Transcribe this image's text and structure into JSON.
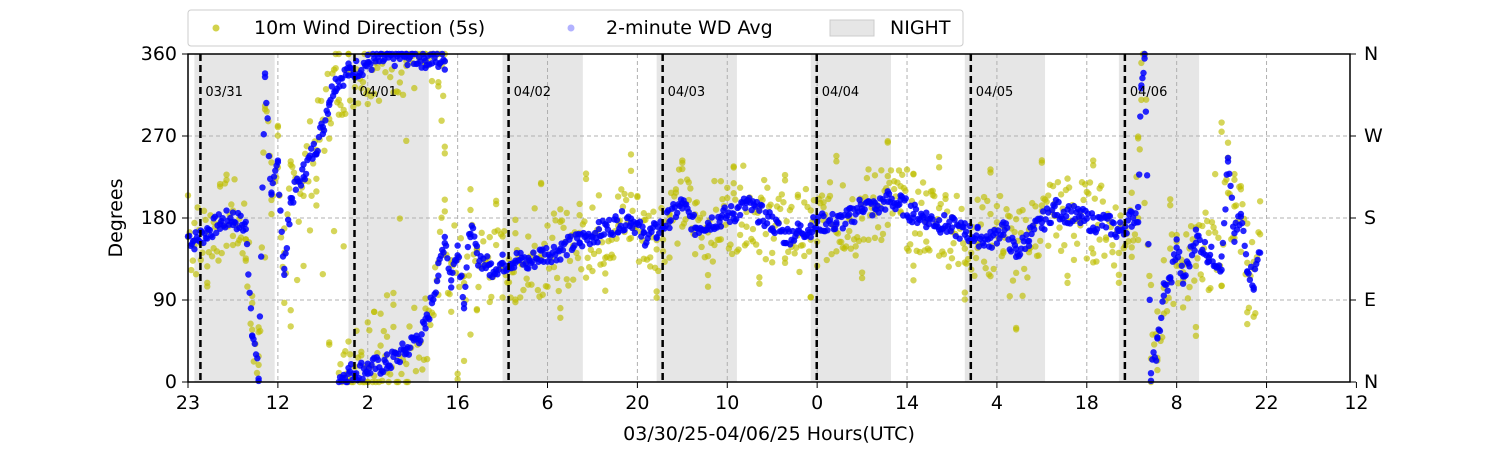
{
  "chart_data": {
    "type": "scatter",
    "title": "",
    "xlabel": "03/30/25-04/06/25  Hours(UTC)",
    "ylabel": "Degrees",
    "x_unit": "hours UTC (time axis)",
    "x_range": [
      "03/30 23:00",
      "04/07 12:00"
    ],
    "x_tick_labels": [
      "23",
      "12",
      "2",
      "16",
      "6",
      "20",
      "10",
      "0",
      "14",
      "4",
      "18",
      "8",
      "22",
      "12"
    ],
    "ylim": [
      0,
      360
    ],
    "y_ticks": [
      0,
      90,
      180,
      270,
      360
    ],
    "y2_tick_labels": [
      "N",
      "E",
      "S",
      "W",
      "N"
    ],
    "grid": true,
    "legend": {
      "placement": "top-left above plot",
      "entries": [
        {
          "label": "10m Wind Direction (5s)",
          "color": "#bfbf00"
        },
        {
          "label": "2-minute WD Avg",
          "color": "#0000ff"
        },
        {
          "label": "NIGHT",
          "color": "#e6e6e6"
        }
      ]
    },
    "day_markers": [
      {
        "label": "03/31",
        "time": "03/31 00:00"
      },
      {
        "label": "04/01",
        "time": "04/01 00:00"
      },
      {
        "label": "04/02",
        "time": "04/02 00:00"
      },
      {
        "label": "04/03",
        "time": "04/03 00:00"
      },
      {
        "label": "04/04",
        "time": "04/04 00:00"
      },
      {
        "label": "04/05",
        "time": "04/05 00:00"
      },
      {
        "label": "04/06",
        "time": "04/06 00:00"
      }
    ],
    "night_periods": [
      {
        "start": "03/31 00:00",
        "end": "03/31 12:30"
      },
      {
        "start": "04/01 00:00",
        "end": "04/01 12:30"
      },
      {
        "start": "04/02 00:00",
        "end": "04/02 12:30"
      },
      {
        "start": "04/03 00:00",
        "end": "04/03 12:30"
      },
      {
        "start": "04/04 00:00",
        "end": "04/04 12:30"
      },
      {
        "start": "04/05 00:00",
        "end": "04/05 12:30"
      },
      {
        "start": "04/06 00:00",
        "end": "04/06 12:30"
      }
    ],
    "series": [
      {
        "name": "2-minute WD Avg",
        "color": "#0000ff",
        "points": [
          [
            "03/30 23:00",
            160
          ],
          [
            "03/31 00:00",
            155
          ],
          [
            "03/31 02:00",
            165
          ],
          [
            "03/31 04:00",
            175
          ],
          [
            "03/31 06:00",
            180
          ],
          [
            "03/31 08:00",
            170
          ],
          [
            "03/31 09:00",
            60
          ],
          [
            "03/31 10:00",
            5
          ],
          [
            "03/31 11:00",
            340
          ],
          [
            "03/31 12:00",
            200
          ],
          [
            "03/31 13:00",
            240
          ],
          [
            "03/31 14:00",
            120
          ],
          [
            "03/31 15:00",
            200
          ],
          [
            "03/31 17:00",
            230
          ],
          [
            "03/31 19:00",
            260
          ],
          [
            "03/31 20:00",
            280
          ],
          [
            "03/31 21:00",
            310
          ],
          [
            "03/31 22:00",
            330
          ],
          [
            "04/01 00:00",
            340
          ],
          [
            "04/01 03:00",
            350
          ],
          [
            "04/01 06:00",
            355
          ],
          [
            "04/01 09:00",
            358
          ],
          [
            "04/01 12:00",
            355
          ],
          [
            "04/01 15:00",
            352
          ],
          [
            "03/31 22:30",
            5
          ],
          [
            "04/01 00:00",
            10
          ],
          [
            "04/01 03:00",
            15
          ],
          [
            "04/01 06:00",
            20
          ],
          [
            "04/01 09:00",
            35
          ],
          [
            "04/01 12:00",
            60
          ],
          [
            "04/01 14:00",
            120
          ],
          [
            "04/01 15:00",
            160
          ],
          [
            "04/01 16:00",
            110
          ],
          [
            "04/01 17:00",
            150
          ],
          [
            "04/01 18:00",
            90
          ],
          [
            "04/01 19:00",
            170
          ],
          [
            "04/01 20:00",
            140
          ],
          [
            "04/01 22:00",
            125
          ],
          [
            "04/02 00:00",
            130
          ],
          [
            "04/02 02:00",
            135
          ],
          [
            "04/02 04:00",
            130
          ],
          [
            "04/02 06:00",
            140
          ],
          [
            "04/02 09:00",
            145
          ],
          [
            "04/02 12:00",
            155
          ],
          [
            "04/02 15:00",
            165
          ],
          [
            "04/02 18:00",
            175
          ],
          [
            "04/02 20:00",
            180
          ],
          [
            "04/02 22:00",
            160
          ],
          [
            "04/03 00:00",
            165
          ],
          [
            "04/03 02:00",
            180
          ],
          [
            "04/03 04:00",
            195
          ],
          [
            "04/03 06:00",
            170
          ],
          [
            "04/03 08:00",
            175
          ],
          [
            "04/03 10:00",
            180
          ],
          [
            "04/03 12:00",
            185
          ],
          [
            "04/03 14:00",
            195
          ],
          [
            "04/03 16:00",
            185
          ],
          [
            "04/03 18:00",
            175
          ],
          [
            "04/03 20:00",
            160
          ],
          [
            "04/03 22:00",
            165
          ],
          [
            "04/04 00:00",
            170
          ],
          [
            "04/04 02:00",
            175
          ],
          [
            "04/04 04:00",
            175
          ],
          [
            "04/04 06:00",
            180
          ],
          [
            "04/04 08:00",
            195
          ],
          [
            "04/04 10:00",
            190
          ],
          [
            "04/04 12:00",
            200
          ],
          [
            "04/04 14:00",
            195
          ],
          [
            "04/04 16:00",
            185
          ],
          [
            "04/04 18:00",
            180
          ],
          [
            "04/04 20:00",
            175
          ],
          [
            "04/04 22:00",
            170
          ],
          [
            "04/05 00:00",
            165
          ],
          [
            "04/05 02:00",
            160
          ],
          [
            "04/05 04:00",
            155
          ],
          [
            "04/05 06:00",
            170
          ],
          [
            "04/05 08:00",
            140
          ],
          [
            "04/05 10:00",
            160
          ],
          [
            "04/05 12:00",
            175
          ],
          [
            "04/05 14:00",
            190
          ],
          [
            "04/05 16:00",
            185
          ],
          [
            "04/05 18:00",
            180
          ],
          [
            "04/05 20:00",
            175
          ],
          [
            "04/05 22:00",
            175
          ],
          [
            "04/06 00:00",
            165
          ],
          [
            "04/06 02:00",
            180
          ],
          [
            "04/06 03:00",
            185
          ],
          [
            "04/06 03:30",
            330
          ],
          [
            "04/06 04:00",
            360
          ],
          [
            "04/06 05:00",
            10
          ],
          [
            "04/06 06:00",
            40
          ],
          [
            "04/06 07:00",
            100
          ],
          [
            "04/06 08:00",
            110
          ],
          [
            "04/06 09:00",
            150
          ],
          [
            "04/06 10:00",
            110
          ],
          [
            "04/06 12:00",
            160
          ],
          [
            "04/06 14:00",
            140
          ],
          [
            "04/06 16:00",
            130
          ],
          [
            "04/06 17:00",
            240
          ],
          [
            "04/06 18:00",
            160
          ],
          [
            "04/06 19:00",
            180
          ],
          [
            "04/06 20:00",
            130
          ],
          [
            "04/06 21:00",
            110
          ],
          [
            "04/06 22:00",
            150
          ]
        ]
      },
      {
        "name": "10m Wind Direction (5s)",
        "color": "#bfbf00",
        "points": [
          [
            "03/30 23:00",
            205
          ],
          [
            "03/31 02:00",
            110
          ],
          [
            "03/31 05:00",
            220
          ],
          [
            "03/31 08:00",
            130
          ],
          [
            "03/31 10:00",
            60
          ],
          [
            "03/31 13:00",
            280
          ],
          [
            "03/31 15:00",
            70
          ],
          [
            "03/31 19:00",
            200
          ],
          [
            "03/31 21:00",
            40
          ],
          [
            "03/31 22:30",
            300
          ],
          [
            "04/01 00:00",
            0
          ],
          [
            "04/01 04:00",
            80
          ],
          [
            "04/01 07:00",
            90
          ],
          [
            "04/01 10:00",
            360
          ],
          [
            "04/01 14:00",
            330
          ],
          [
            "04/01 15:00",
            260
          ],
          [
            "04/01 17:00",
            0
          ],
          [
            "04/01 20:00",
            80
          ],
          [
            "04/01 23:00",
            200
          ],
          [
            "04/02 02:00",
            95
          ],
          [
            "04/02 06:00",
            210
          ],
          [
            "04/02 09:00",
            80
          ],
          [
            "04/02 13:00",
            225
          ],
          [
            "04/02 16:00",
            110
          ],
          [
            "04/02 20:00",
            240
          ],
          [
            "04/03 00:00",
            100
          ],
          [
            "04/03 04:00",
            250
          ],
          [
            "04/03 08:00",
            110
          ],
          [
            "04/03 12:00",
            245
          ],
          [
            "04/03 16:00",
            115
          ],
          [
            "04/03 20:00",
            230
          ],
          [
            "04/04 00:00",
            100
          ],
          [
            "04/04 04:00",
            250
          ],
          [
            "04/04 08:00",
            115
          ],
          [
            "04/04 12:00",
            260
          ],
          [
            "04/04 16:00",
            120
          ],
          [
            "04/04 20:00",
            245
          ],
          [
            "04/05 00:00",
            90
          ],
          [
            "04/05 04:00",
            230
          ],
          [
            "04/05 08:00",
            50
          ],
          [
            "04/05 12:00",
            235
          ],
          [
            "04/05 16:00",
            110
          ],
          [
            "04/05 20:00",
            240
          ],
          [
            "04/06 00:00",
            110
          ],
          [
            "04/06 03:00",
            270
          ],
          [
            "04/06 06:00",
            20
          ],
          [
            "04/06 08:00",
            200
          ],
          [
            "04/06 12:00",
            60
          ],
          [
            "04/06 16:00",
            280
          ],
          [
            "04/06 18:00",
            220
          ],
          [
            "04/06 20:00",
            70
          ],
          [
            "04/06 22:00",
            200
          ]
        ]
      }
    ]
  }
}
